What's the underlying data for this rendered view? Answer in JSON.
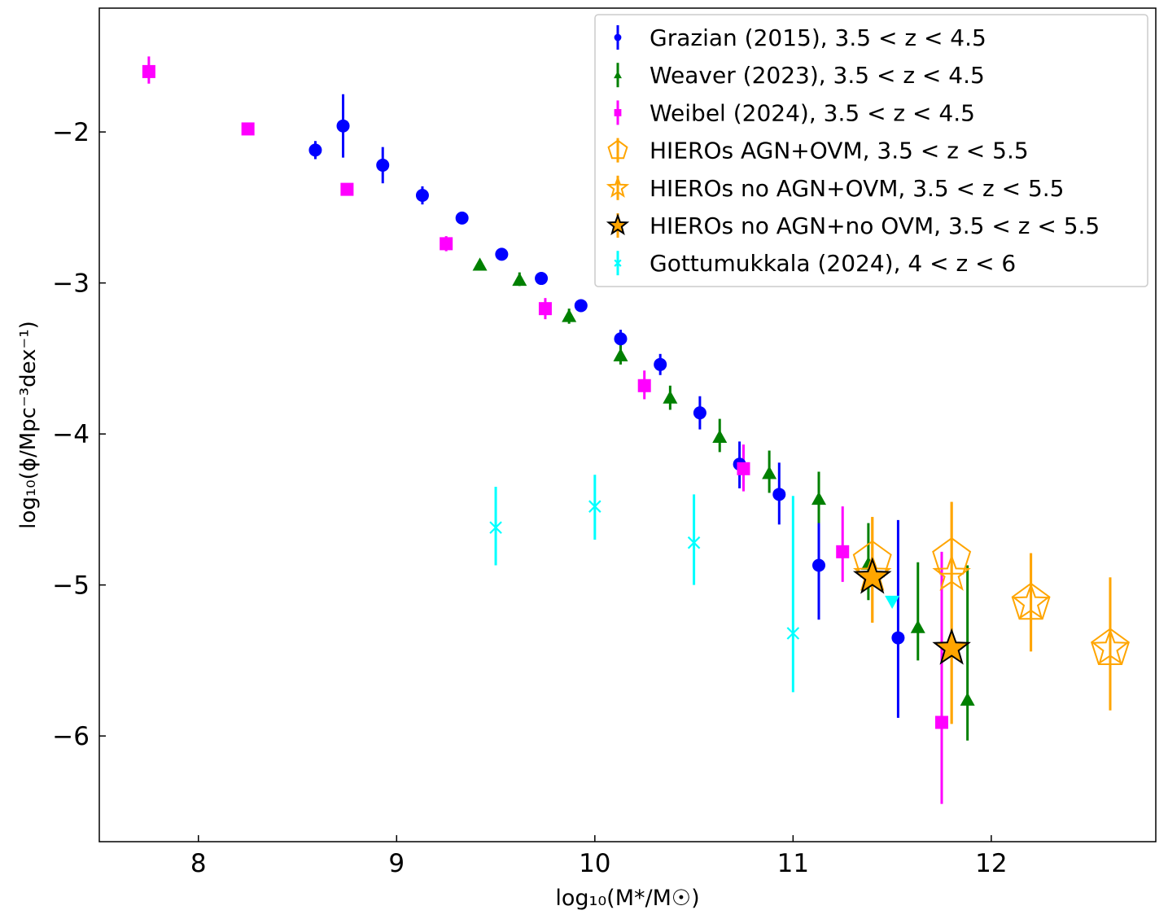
{
  "chart_data": {
    "type": "scatter",
    "xlabel": "log₁₀(M*/M☉)",
    "ylabel": "log₁₀(ϕ/Mpc⁻³dex⁻¹)",
    "xlim": [
      7.5,
      12.83
    ],
    "ylim": [
      -6.7,
      -1.18
    ],
    "xticks": [
      8,
      9,
      10,
      11,
      12
    ],
    "xtick_labels": [
      "8",
      "9",
      "10",
      "11",
      "12"
    ],
    "yticks": [
      -2,
      -3,
      -4,
      -5,
      -6
    ],
    "ytick_labels": [
      "−2",
      "−3",
      "−4",
      "−5",
      "−6"
    ],
    "legend_position": "top-right",
    "series": [
      {
        "name": "Grazian (2015), 3.5 < z < 4.5",
        "legend_label": "Grazian (2015), 3.5 < z < 4.5",
        "color": "#0000ff",
        "marker": "circle",
        "points": [
          {
            "x": 8.59,
            "y": -2.12,
            "lo": -2.18,
            "hi": -2.06
          },
          {
            "x": 8.73,
            "y": -1.96,
            "lo": -2.17,
            "hi": -1.75
          },
          {
            "x": 8.93,
            "y": -2.22,
            "lo": -2.34,
            "hi": -2.1
          },
          {
            "x": 9.13,
            "y": -2.42,
            "lo": -2.48,
            "hi": -2.36
          },
          {
            "x": 9.33,
            "y": -2.57,
            "lo": -2.6,
            "hi": -2.54
          },
          {
            "x": 9.53,
            "y": -2.81,
            "lo": -2.84,
            "hi": -2.78
          },
          {
            "x": 9.73,
            "y": -2.97,
            "lo": -3.0,
            "hi": -2.94
          },
          {
            "x": 9.93,
            "y": -3.15,
            "lo": -3.18,
            "hi": -3.12
          },
          {
            "x": 10.13,
            "y": -3.37,
            "lo": -3.43,
            "hi": -3.31
          },
          {
            "x": 10.33,
            "y": -3.54,
            "lo": -3.61,
            "hi": -3.47
          },
          {
            "x": 10.53,
            "y": -3.86,
            "lo": -3.97,
            "hi": -3.75
          },
          {
            "x": 10.73,
            "y": -4.2,
            "lo": -4.36,
            "hi": -4.05
          },
          {
            "x": 10.93,
            "y": -4.4,
            "lo": -4.6,
            "hi": -4.19
          },
          {
            "x": 11.13,
            "y": -4.87,
            "lo": -5.23,
            "hi": -4.56
          },
          {
            "x": 11.53,
            "y": -5.35,
            "lo": -5.88,
            "hi": -4.57
          }
        ]
      },
      {
        "name": "Weaver (2023), 3.5 < z < 4.5",
        "legend_label": "Weaver (2023), 3.5 < z < 4.5",
        "color": "#008000",
        "marker": "triangle",
        "points": [
          {
            "x": 9.42,
            "y": -2.88,
            "lo": -2.91,
            "hi": -2.85
          },
          {
            "x": 9.62,
            "y": -2.98,
            "lo": -3.02,
            "hi": -2.93
          },
          {
            "x": 9.87,
            "y": -3.22,
            "lo": -3.27,
            "hi": -3.17
          },
          {
            "x": 10.13,
            "y": -3.48,
            "lo": -3.54,
            "hi": -3.41
          },
          {
            "x": 10.38,
            "y": -3.76,
            "lo": -3.84,
            "hi": -3.68
          },
          {
            "x": 10.63,
            "y": -4.02,
            "lo": -4.12,
            "hi": -3.9
          },
          {
            "x": 10.88,
            "y": -4.26,
            "lo": -4.39,
            "hi": -4.11
          },
          {
            "x": 11.13,
            "y": -4.43,
            "lo": -4.59,
            "hi": -4.25
          },
          {
            "x": 11.38,
            "y": -4.86,
            "lo": -5.1,
            "hi": -4.59
          },
          {
            "x": 11.63,
            "y": -5.28,
            "lo": -5.5,
            "hi": -4.85
          },
          {
            "x": 11.88,
            "y": -5.76,
            "lo": -6.03,
            "hi": -4.87
          }
        ]
      },
      {
        "name": "Weibel (2024), 3.5 < z < 4.5",
        "legend_label": "Weibel (2024), 3.5 < z < 4.5",
        "color": "#ff00ff",
        "marker": "square",
        "points": [
          {
            "x": 7.75,
            "y": -1.6,
            "lo": -1.68,
            "hi": -1.5
          },
          {
            "x": 8.25,
            "y": -1.98,
            "lo": -2.02,
            "hi": -1.94
          },
          {
            "x": 8.75,
            "y": -2.38,
            "lo": -2.41,
            "hi": -2.35
          },
          {
            "x": 9.25,
            "y": -2.74,
            "lo": -2.79,
            "hi": -2.69
          },
          {
            "x": 9.75,
            "y": -3.17,
            "lo": -3.24,
            "hi": -3.1
          },
          {
            "x": 10.25,
            "y": -3.68,
            "lo": -3.77,
            "hi": -3.58
          },
          {
            "x": 10.75,
            "y": -4.23,
            "lo": -4.38,
            "hi": -4.07
          },
          {
            "x": 11.25,
            "y": -4.78,
            "lo": -4.98,
            "hi": -4.48
          },
          {
            "x": 11.75,
            "y": -5.91,
            "lo": -6.45,
            "hi": -4.78
          }
        ]
      },
      {
        "name": "HIEROs AGN+OVM, 3.5 < z < 5.5",
        "legend_label": "HIEROs AGN+OVM, 3.5 < z < 5.5",
        "color": "#ffa500",
        "marker": "pentagon-open",
        "points": [
          {
            "x": 11.4,
            "y": -4.84,
            "lo": -5.25,
            "hi": -4.55
          },
          {
            "x": 11.8,
            "y": -4.82,
            "lo": -5.92,
            "hi": -4.45
          },
          {
            "x": 12.2,
            "y": -5.12,
            "lo": -5.44,
            "hi": -4.79
          },
          {
            "x": 12.6,
            "y": -5.42,
            "lo": -5.83,
            "hi": -4.95
          }
        ]
      },
      {
        "name": "HIEROs no AGN+OVM, 3.5 < z < 5.5",
        "legend_label": "HIEROs no AGN+OVM, 3.5 < z < 5.5",
        "color": "#ffa500",
        "marker": "star-open",
        "points": [
          {
            "x": 11.4,
            "y": -4.93,
            "lo": -5.25,
            "hi": -4.55
          },
          {
            "x": 11.8,
            "y": -4.93,
            "lo": -5.92,
            "hi": -4.45
          },
          {
            "x": 12.2,
            "y": -5.12,
            "lo": -5.44,
            "hi": -4.79
          },
          {
            "x": 12.6,
            "y": -5.42,
            "lo": -5.83,
            "hi": -4.95
          }
        ]
      },
      {
        "name": "HIEROs no AGN+no OVM, 3.5 < z < 5.5",
        "legend_label": "HIEROs no AGN+no OVM, 3.5 < z < 5.5",
        "color": "#ffa500",
        "marker": "star-filled",
        "points": [
          {
            "x": 11.4,
            "y": -4.95,
            "lo": -4.95,
            "hi": -4.95
          },
          {
            "x": 11.8,
            "y": -5.42,
            "lo": -5.42,
            "hi": -5.42
          }
        ]
      },
      {
        "name": "Gottumukkala (2024), 4 < z < 6",
        "legend_label": "Gottumukkala (2024), 4 < z < 6",
        "color": "#00ffff",
        "marker": "x",
        "points": [
          {
            "x": 9.5,
            "y": -4.62,
            "lo": -4.87,
            "hi": -4.35
          },
          {
            "x": 10.0,
            "y": -4.48,
            "lo": -4.7,
            "hi": -4.27
          },
          {
            "x": 10.5,
            "y": -4.72,
            "lo": -5.0,
            "hi": -4.4
          },
          {
            "x": 11.0,
            "y": -5.32,
            "lo": -5.71,
            "hi": -4.41
          },
          {
            "x": 11.5,
            "y": -5.11,
            "lo": -5.11,
            "hi": -5.11,
            "upper_limit": true
          }
        ]
      }
    ]
  }
}
